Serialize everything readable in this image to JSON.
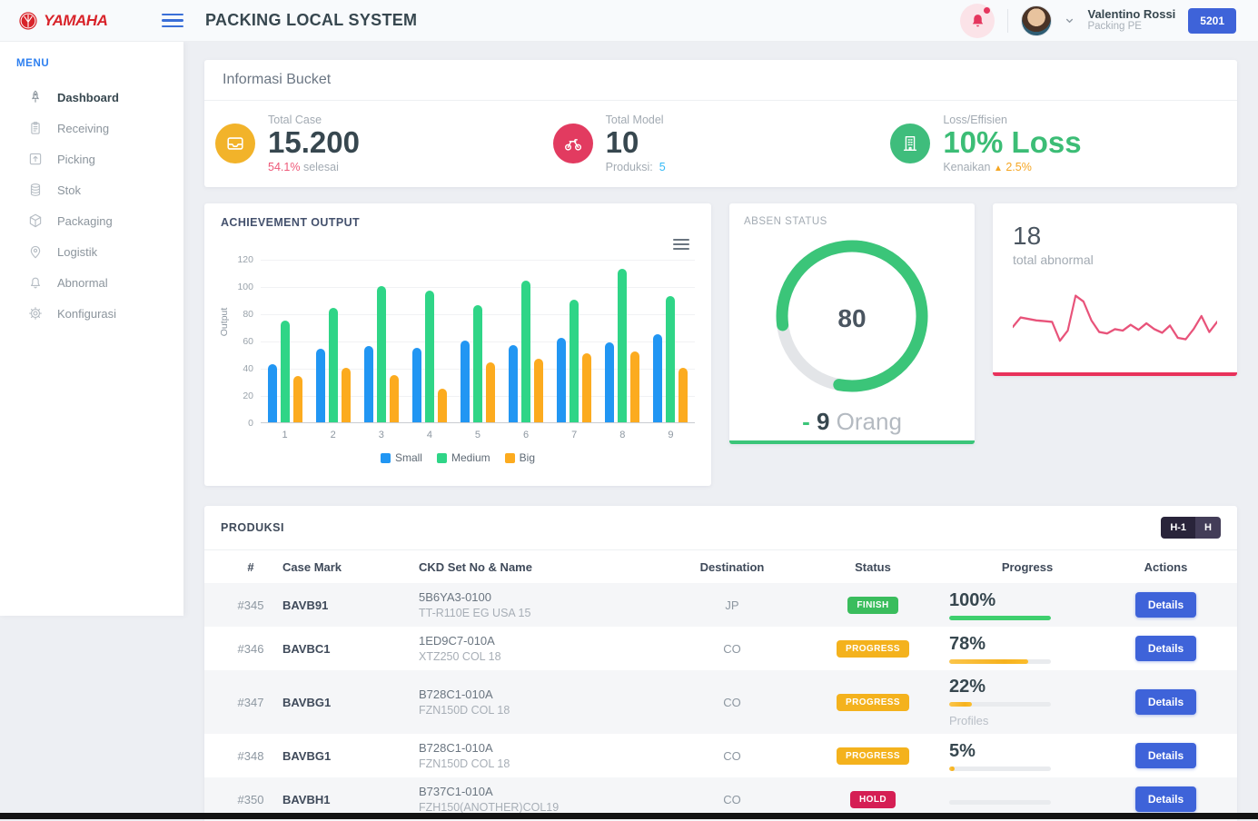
{
  "colors": {
    "accent_blue": "#3e63d9",
    "menu_blue": "#2d7ff0",
    "green": "#3cbd76",
    "red_pink": "#e8315b",
    "amber": "#f4b21d",
    "stat_yellow": "#f2b32a",
    "stat_red": "#e23b60",
    "stat_green": "#3fbd7c"
  },
  "header": {
    "brand": "YAMAHA",
    "title": "PACKING LOCAL SYSTEM",
    "user_name": "Valentino Rossi",
    "user_role": "Packing PE",
    "badge": "5201"
  },
  "sidebar": {
    "menu_label": "MENU",
    "items": [
      {
        "label": "Dashboard",
        "icon": "rocket-icon",
        "active": true
      },
      {
        "label": "Receiving",
        "icon": "clipboard-icon",
        "active": false
      },
      {
        "label": "Picking",
        "icon": "box-arrow-up-icon",
        "active": false
      },
      {
        "label": "Stok",
        "icon": "database-icon",
        "active": false
      },
      {
        "label": "Packaging",
        "icon": "cube-icon",
        "active": false
      },
      {
        "label": "Logistik",
        "icon": "map-pin-icon",
        "active": false
      },
      {
        "label": "Abnormal",
        "icon": "bell-icon",
        "active": false
      },
      {
        "label": "Konfigurasi",
        "icon": "gear-icon",
        "active": false
      }
    ]
  },
  "info_bucket": {
    "title": "Informasi Bucket",
    "total_case": {
      "label": "Total Case",
      "value": "15.200",
      "highlight": "54.1%",
      "suffix": "selesai"
    },
    "total_model": {
      "label": "Total Model",
      "value": "10",
      "sub_label": "Produksi:",
      "sub_value": "5"
    },
    "loss": {
      "label": "Loss/Effisien",
      "value": "10% Loss",
      "sub_label": "Kenaikan",
      "arrow": "▲",
      "sub_value": "2.5%"
    }
  },
  "achievement": {
    "title": "ACHIEVEMENT OUTPUT",
    "chart_data": {
      "type": "bar",
      "title": "ACHIEVEMENT OUTPUT",
      "xlabel": "",
      "ylabel": "Output",
      "ylim": [
        0,
        120
      ],
      "yticks": [
        0,
        20,
        40,
        60,
        80,
        100,
        120
      ],
      "grid": true,
      "legend_position": "bottom",
      "categories": [
        "1",
        "2",
        "3",
        "4",
        "5",
        "6",
        "7",
        "8",
        "9"
      ],
      "series": [
        {
          "name": "Small",
          "color": "#2196f3",
          "values": [
            43,
            54,
            56,
            55,
            60,
            57,
            62,
            59,
            65
          ]
        },
        {
          "name": "Medium",
          "color": "#2fd587",
          "values": [
            75,
            84,
            100,
            97,
            86,
            104,
            90,
            113,
            93
          ]
        },
        {
          "name": "Big",
          "color": "#fcab1f",
          "values": [
            34,
            40,
            35,
            25,
            44,
            47,
            51,
            52,
            40
          ]
        }
      ]
    }
  },
  "absen": {
    "title": "ABSEN STATUS",
    "chart_data": {
      "type": "donut",
      "value": 80,
      "max": 100,
      "color": "#3bc579",
      "track": "#e3e5e8"
    },
    "center_value": "80",
    "dash": "-",
    "count": "9",
    "unit": "Orang"
  },
  "abnormal": {
    "value": "18",
    "label": "total abnormal",
    "chart_data": {
      "type": "line",
      "color": "#e8537a",
      "values": [
        35,
        48,
        46,
        44,
        43,
        42,
        16,
        30,
        78,
        70,
        44,
        28,
        26,
        32,
        30,
        38,
        31,
        40,
        32,
        27,
        37,
        20,
        18,
        32,
        50,
        28,
        42
      ]
    }
  },
  "produksi": {
    "title": "PRODUKSI",
    "toggle": [
      {
        "label": "H-1",
        "active": true
      },
      {
        "label": "H",
        "active": false
      }
    ],
    "columns": [
      "#",
      "Case Mark",
      "CKD Set No & Name",
      "Destination",
      "Status",
      "Progress",
      "Actions"
    ],
    "details_label": "Details",
    "rows": [
      {
        "id": "#345",
        "case_mark": "BAVB91",
        "ckd_no": "5B6YA3-0100",
        "ckd_name": "TT-R110E EG USA 15",
        "destination": "JP",
        "status": "FINISH",
        "status_color": "#3abd5d",
        "progress": 100,
        "progress_label": "100%",
        "bar_color": "#3ecf6e",
        "note": ""
      },
      {
        "id": "#346",
        "case_mark": "BAVBC1",
        "ckd_no": "1ED9C7-010A",
        "ckd_name": "XTZ250 COL 18",
        "destination": "CO",
        "status": "PROGRESS",
        "status_color": "#f4b21d",
        "progress": 78,
        "progress_label": "78%",
        "bar_color": "#f6b21d",
        "note": ""
      },
      {
        "id": "#347",
        "case_mark": "BAVBG1",
        "ckd_no": "B728C1-010A",
        "ckd_name": "FZN150D COL 18",
        "destination": "CO",
        "status": "PROGRESS",
        "status_color": "#f4b21d",
        "progress": 22,
        "progress_label": "22%",
        "bar_color": "#f6b21d",
        "note": "Profiles"
      },
      {
        "id": "#348",
        "case_mark": "BAVBG1",
        "ckd_no": "B728C1-010A",
        "ckd_name": "FZN150D COL 18",
        "destination": "CO",
        "status": "PROGRESS",
        "status_color": "#f4b21d",
        "progress": 5,
        "progress_label": "5%",
        "bar_color": "#f6b21d",
        "note": ""
      },
      {
        "id": "#350",
        "case_mark": "BAVBH1",
        "ckd_no": "B737C1-010A",
        "ckd_name": "FZH150(ANOTHER)COL19",
        "destination": "CO",
        "status": "HOLD",
        "status_color": "#d51f54",
        "progress": null,
        "progress_label": "",
        "bar_color": "#f6b21d",
        "note": ""
      }
    ]
  }
}
